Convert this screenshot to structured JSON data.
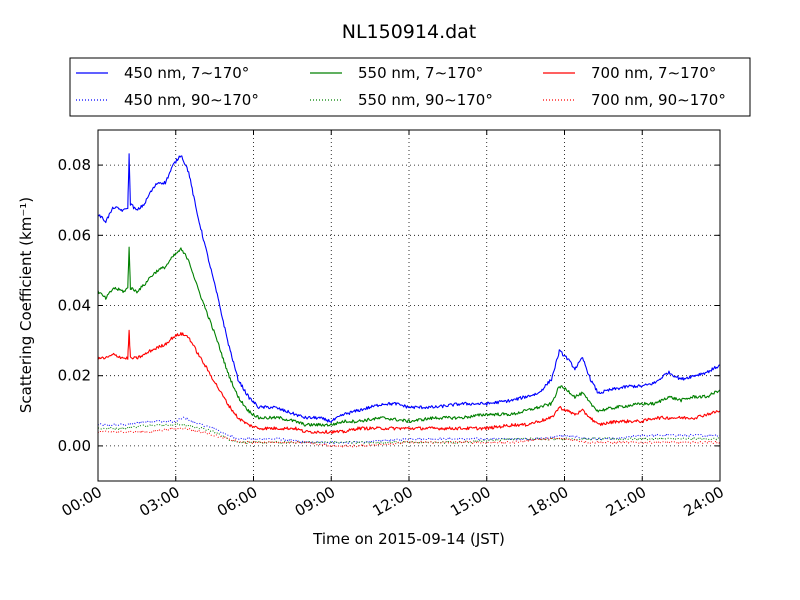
{
  "chart_data": {
    "type": "line",
    "title": "NL150914.dat",
    "xlabel": "Time on 2015-09-14 (JST)",
    "ylabel": "Scattering Coefficient (km⁻¹)",
    "xlim": [
      0,
      24
    ],
    "ylim": [
      -0.01,
      0.09
    ],
    "x_ticks": [
      "00:00",
      "03:00",
      "06:00",
      "09:00",
      "12:00",
      "15:00",
      "18:00",
      "21:00",
      "24:00"
    ],
    "y_ticks": [
      "0.00",
      "0.02",
      "0.04",
      "0.06",
      "0.08"
    ],
    "grid": true,
    "legend_position": "top",
    "series": [
      {
        "name": "450 nm, 7∼170°",
        "color": "#0000ff",
        "style": "solid",
        "points": [
          [
            0,
            0.066
          ],
          [
            0.3,
            0.064
          ],
          [
            0.6,
            0.068
          ],
          [
            1.0,
            0.067
          ],
          [
            1.15,
            0.068
          ],
          [
            1.2,
            0.083
          ],
          [
            1.25,
            0.069
          ],
          [
            1.5,
            0.067
          ],
          [
            1.8,
            0.069
          ],
          [
            2.0,
            0.072
          ],
          [
            2.3,
            0.075
          ],
          [
            2.6,
            0.075
          ],
          [
            2.9,
            0.08
          ],
          [
            3.2,
            0.083
          ],
          [
            3.5,
            0.078
          ],
          [
            3.8,
            0.067
          ],
          [
            4.2,
            0.055
          ],
          [
            4.6,
            0.043
          ],
          [
            5.0,
            0.03
          ],
          [
            5.4,
            0.019
          ],
          [
            5.8,
            0.014
          ],
          [
            6.2,
            0.011
          ],
          [
            6.8,
            0.011
          ],
          [
            7.2,
            0.01
          ],
          [
            7.6,
            0.009
          ],
          [
            8.0,
            0.008
          ],
          [
            8.5,
            0.008
          ],
          [
            9.0,
            0.007
          ],
          [
            9.5,
            0.009
          ],
          [
            10.0,
            0.01
          ],
          [
            10.5,
            0.011
          ],
          [
            11.0,
            0.012
          ],
          [
            11.5,
            0.012
          ],
          [
            12.0,
            0.011
          ],
          [
            13.0,
            0.011
          ],
          [
            14.0,
            0.012
          ],
          [
            15.0,
            0.012
          ],
          [
            16.0,
            0.013
          ],
          [
            16.5,
            0.014
          ],
          [
            17.0,
            0.015
          ],
          [
            17.5,
            0.019
          ],
          [
            17.8,
            0.027
          ],
          [
            18.1,
            0.025
          ],
          [
            18.4,
            0.022
          ],
          [
            18.7,
            0.025
          ],
          [
            19.0,
            0.019
          ],
          [
            19.3,
            0.015
          ],
          [
            19.8,
            0.016
          ],
          [
            20.5,
            0.017
          ],
          [
            21.0,
            0.017
          ],
          [
            21.5,
            0.018
          ],
          [
            22.0,
            0.021
          ],
          [
            22.5,
            0.019
          ],
          [
            23.0,
            0.02
          ],
          [
            23.5,
            0.021
          ],
          [
            24.0,
            0.023
          ]
        ]
      },
      {
        "name": "550 nm, 7∼170°",
        "color": "#008000",
        "style": "solid",
        "points": [
          [
            0,
            0.044
          ],
          [
            0.3,
            0.042
          ],
          [
            0.6,
            0.045
          ],
          [
            1.0,
            0.044
          ],
          [
            1.15,
            0.045
          ],
          [
            1.2,
            0.057
          ],
          [
            1.25,
            0.045
          ],
          [
            1.5,
            0.044
          ],
          [
            1.8,
            0.046
          ],
          [
            2.0,
            0.048
          ],
          [
            2.3,
            0.05
          ],
          [
            2.6,
            0.051
          ],
          [
            2.9,
            0.054
          ],
          [
            3.2,
            0.056
          ],
          [
            3.5,
            0.053
          ],
          [
            3.8,
            0.046
          ],
          [
            4.2,
            0.038
          ],
          [
            4.6,
            0.03
          ],
          [
            5.0,
            0.021
          ],
          [
            5.4,
            0.014
          ],
          [
            5.8,
            0.01
          ],
          [
            6.2,
            0.008
          ],
          [
            7.0,
            0.008
          ],
          [
            7.6,
            0.007
          ],
          [
            8.0,
            0.006
          ],
          [
            9.0,
            0.006
          ],
          [
            9.5,
            0.007
          ],
          [
            10.0,
            0.007
          ],
          [
            11.0,
            0.008
          ],
          [
            12.0,
            0.007
          ],
          [
            13.0,
            0.008
          ],
          [
            14.0,
            0.008
          ],
          [
            15.0,
            0.009
          ],
          [
            16.0,
            0.009
          ],
          [
            16.5,
            0.01
          ],
          [
            17.0,
            0.011
          ],
          [
            17.5,
            0.012
          ],
          [
            17.8,
            0.017
          ],
          [
            18.1,
            0.016
          ],
          [
            18.4,
            0.014
          ],
          [
            18.7,
            0.015
          ],
          [
            19.0,
            0.012
          ],
          [
            19.3,
            0.01
          ],
          [
            20.0,
            0.011
          ],
          [
            21.0,
            0.012
          ],
          [
            21.5,
            0.012
          ],
          [
            22.0,
            0.014
          ],
          [
            22.5,
            0.013
          ],
          [
            23.0,
            0.014
          ],
          [
            23.5,
            0.014
          ],
          [
            24.0,
            0.016
          ]
        ]
      },
      {
        "name": "700 nm, 7∼170°",
        "color": "#ff0000",
        "style": "solid",
        "points": [
          [
            0,
            0.025
          ],
          [
            0.3,
            0.025
          ],
          [
            0.6,
            0.026
          ],
          [
            1.0,
            0.025
          ],
          [
            1.15,
            0.025
          ],
          [
            1.2,
            0.033
          ],
          [
            1.25,
            0.025
          ],
          [
            1.5,
            0.025
          ],
          [
            1.8,
            0.026
          ],
          [
            2.0,
            0.027
          ],
          [
            2.3,
            0.028
          ],
          [
            2.6,
            0.029
          ],
          [
            2.9,
            0.031
          ],
          [
            3.2,
            0.032
          ],
          [
            3.5,
            0.031
          ],
          [
            3.8,
            0.027
          ],
          [
            4.2,
            0.022
          ],
          [
            4.6,
            0.017
          ],
          [
            5.0,
            0.012
          ],
          [
            5.4,
            0.008
          ],
          [
            5.8,
            0.006
          ],
          [
            6.2,
            0.005
          ],
          [
            7.0,
            0.005
          ],
          [
            7.6,
            0.005
          ],
          [
            8.0,
            0.004
          ],
          [
            9.0,
            0.004
          ],
          [
            9.5,
            0.004
          ],
          [
            10.0,
            0.005
          ],
          [
            11.0,
            0.005
          ],
          [
            12.0,
            0.005
          ],
          [
            13.0,
            0.005
          ],
          [
            14.0,
            0.005
          ],
          [
            15.0,
            0.005
          ],
          [
            16.0,
            0.006
          ],
          [
            16.5,
            0.006
          ],
          [
            17.0,
            0.007
          ],
          [
            17.5,
            0.008
          ],
          [
            17.8,
            0.011
          ],
          [
            18.1,
            0.01
          ],
          [
            18.4,
            0.009
          ],
          [
            18.7,
            0.01
          ],
          [
            19.0,
            0.008
          ],
          [
            19.3,
            0.006
          ],
          [
            20.0,
            0.007
          ],
          [
            21.0,
            0.007
          ],
          [
            21.5,
            0.008
          ],
          [
            22.0,
            0.008
          ],
          [
            22.5,
            0.008
          ],
          [
            23.0,
            0.008
          ],
          [
            23.5,
            0.009
          ],
          [
            24.0,
            0.01
          ]
        ]
      },
      {
        "name": "450 nm, 90∼170°",
        "color": "#0000ff",
        "style": "dotted",
        "points": [
          [
            0,
            0.006
          ],
          [
            1.0,
            0.006
          ],
          [
            2.0,
            0.007
          ],
          [
            3.0,
            0.007
          ],
          [
            3.3,
            0.008
          ],
          [
            4.0,
            0.006
          ],
          [
            4.5,
            0.005
          ],
          [
            5.0,
            0.003
          ],
          [
            5.5,
            0.002
          ],
          [
            6.0,
            0.002
          ],
          [
            7.0,
            0.002
          ],
          [
            8.0,
            0.001
          ],
          [
            9.0,
            0.001
          ],
          [
            10.0,
            0.001
          ],
          [
            12.0,
            0.002
          ],
          [
            14.0,
            0.002
          ],
          [
            16.0,
            0.002
          ],
          [
            17.0,
            0.002
          ],
          [
            18.0,
            0.003
          ],
          [
            19.0,
            0.002
          ],
          [
            20.0,
            0.002
          ],
          [
            21.0,
            0.003
          ],
          [
            22.0,
            0.003
          ],
          [
            23.0,
            0.003
          ],
          [
            24.0,
            0.003
          ]
        ]
      },
      {
        "name": "550 nm, 90∼170°",
        "color": "#008000",
        "style": "dotted",
        "points": [
          [
            0,
            0.005
          ],
          [
            1.0,
            0.005
          ],
          [
            2.0,
            0.006
          ],
          [
            3.0,
            0.006
          ],
          [
            3.3,
            0.006
          ],
          [
            4.0,
            0.005
          ],
          [
            4.5,
            0.004
          ],
          [
            5.0,
            0.002
          ],
          [
            5.5,
            0.001
          ],
          [
            6.0,
            0.001
          ],
          [
            7.0,
            0.001
          ],
          [
            8.0,
            0.001
          ],
          [
            9.0,
            0.001
          ],
          [
            10.0,
            0.001
          ],
          [
            12.0,
            0.001
          ],
          [
            14.0,
            0.001
          ],
          [
            16.0,
            0.002
          ],
          [
            17.0,
            0.002
          ],
          [
            18.0,
            0.002
          ],
          [
            19.0,
            0.002
          ],
          [
            20.0,
            0.002
          ],
          [
            21.0,
            0.002
          ],
          [
            22.0,
            0.002
          ],
          [
            23.0,
            0.002
          ],
          [
            24.0,
            0.002
          ]
        ]
      },
      {
        "name": "700 nm, 90∼170°",
        "color": "#ff0000",
        "style": "dotted",
        "points": [
          [
            0,
            0.004
          ],
          [
            1.0,
            0.004
          ],
          [
            2.0,
            0.004
          ],
          [
            3.0,
            0.005
          ],
          [
            3.3,
            0.005
          ],
          [
            4.0,
            0.004
          ],
          [
            4.5,
            0.003
          ],
          [
            5.0,
            0.002
          ],
          [
            5.5,
            0.001
          ],
          [
            6.0,
            0.001
          ],
          [
            7.0,
            0.001
          ],
          [
            8.0,
            0.001
          ],
          [
            9.0,
            0.0
          ],
          [
            10.0,
            0.0
          ],
          [
            12.0,
            0.001
          ],
          [
            14.0,
            0.001
          ],
          [
            16.0,
            0.001
          ],
          [
            17.0,
            0.002
          ],
          [
            18.0,
            0.002
          ],
          [
            19.0,
            0.001
          ],
          [
            20.0,
            0.001
          ],
          [
            21.0,
            0.001
          ],
          [
            22.0,
            0.001
          ],
          [
            23.0,
            0.001
          ],
          [
            24.0,
            0.001
          ]
        ]
      }
    ]
  }
}
